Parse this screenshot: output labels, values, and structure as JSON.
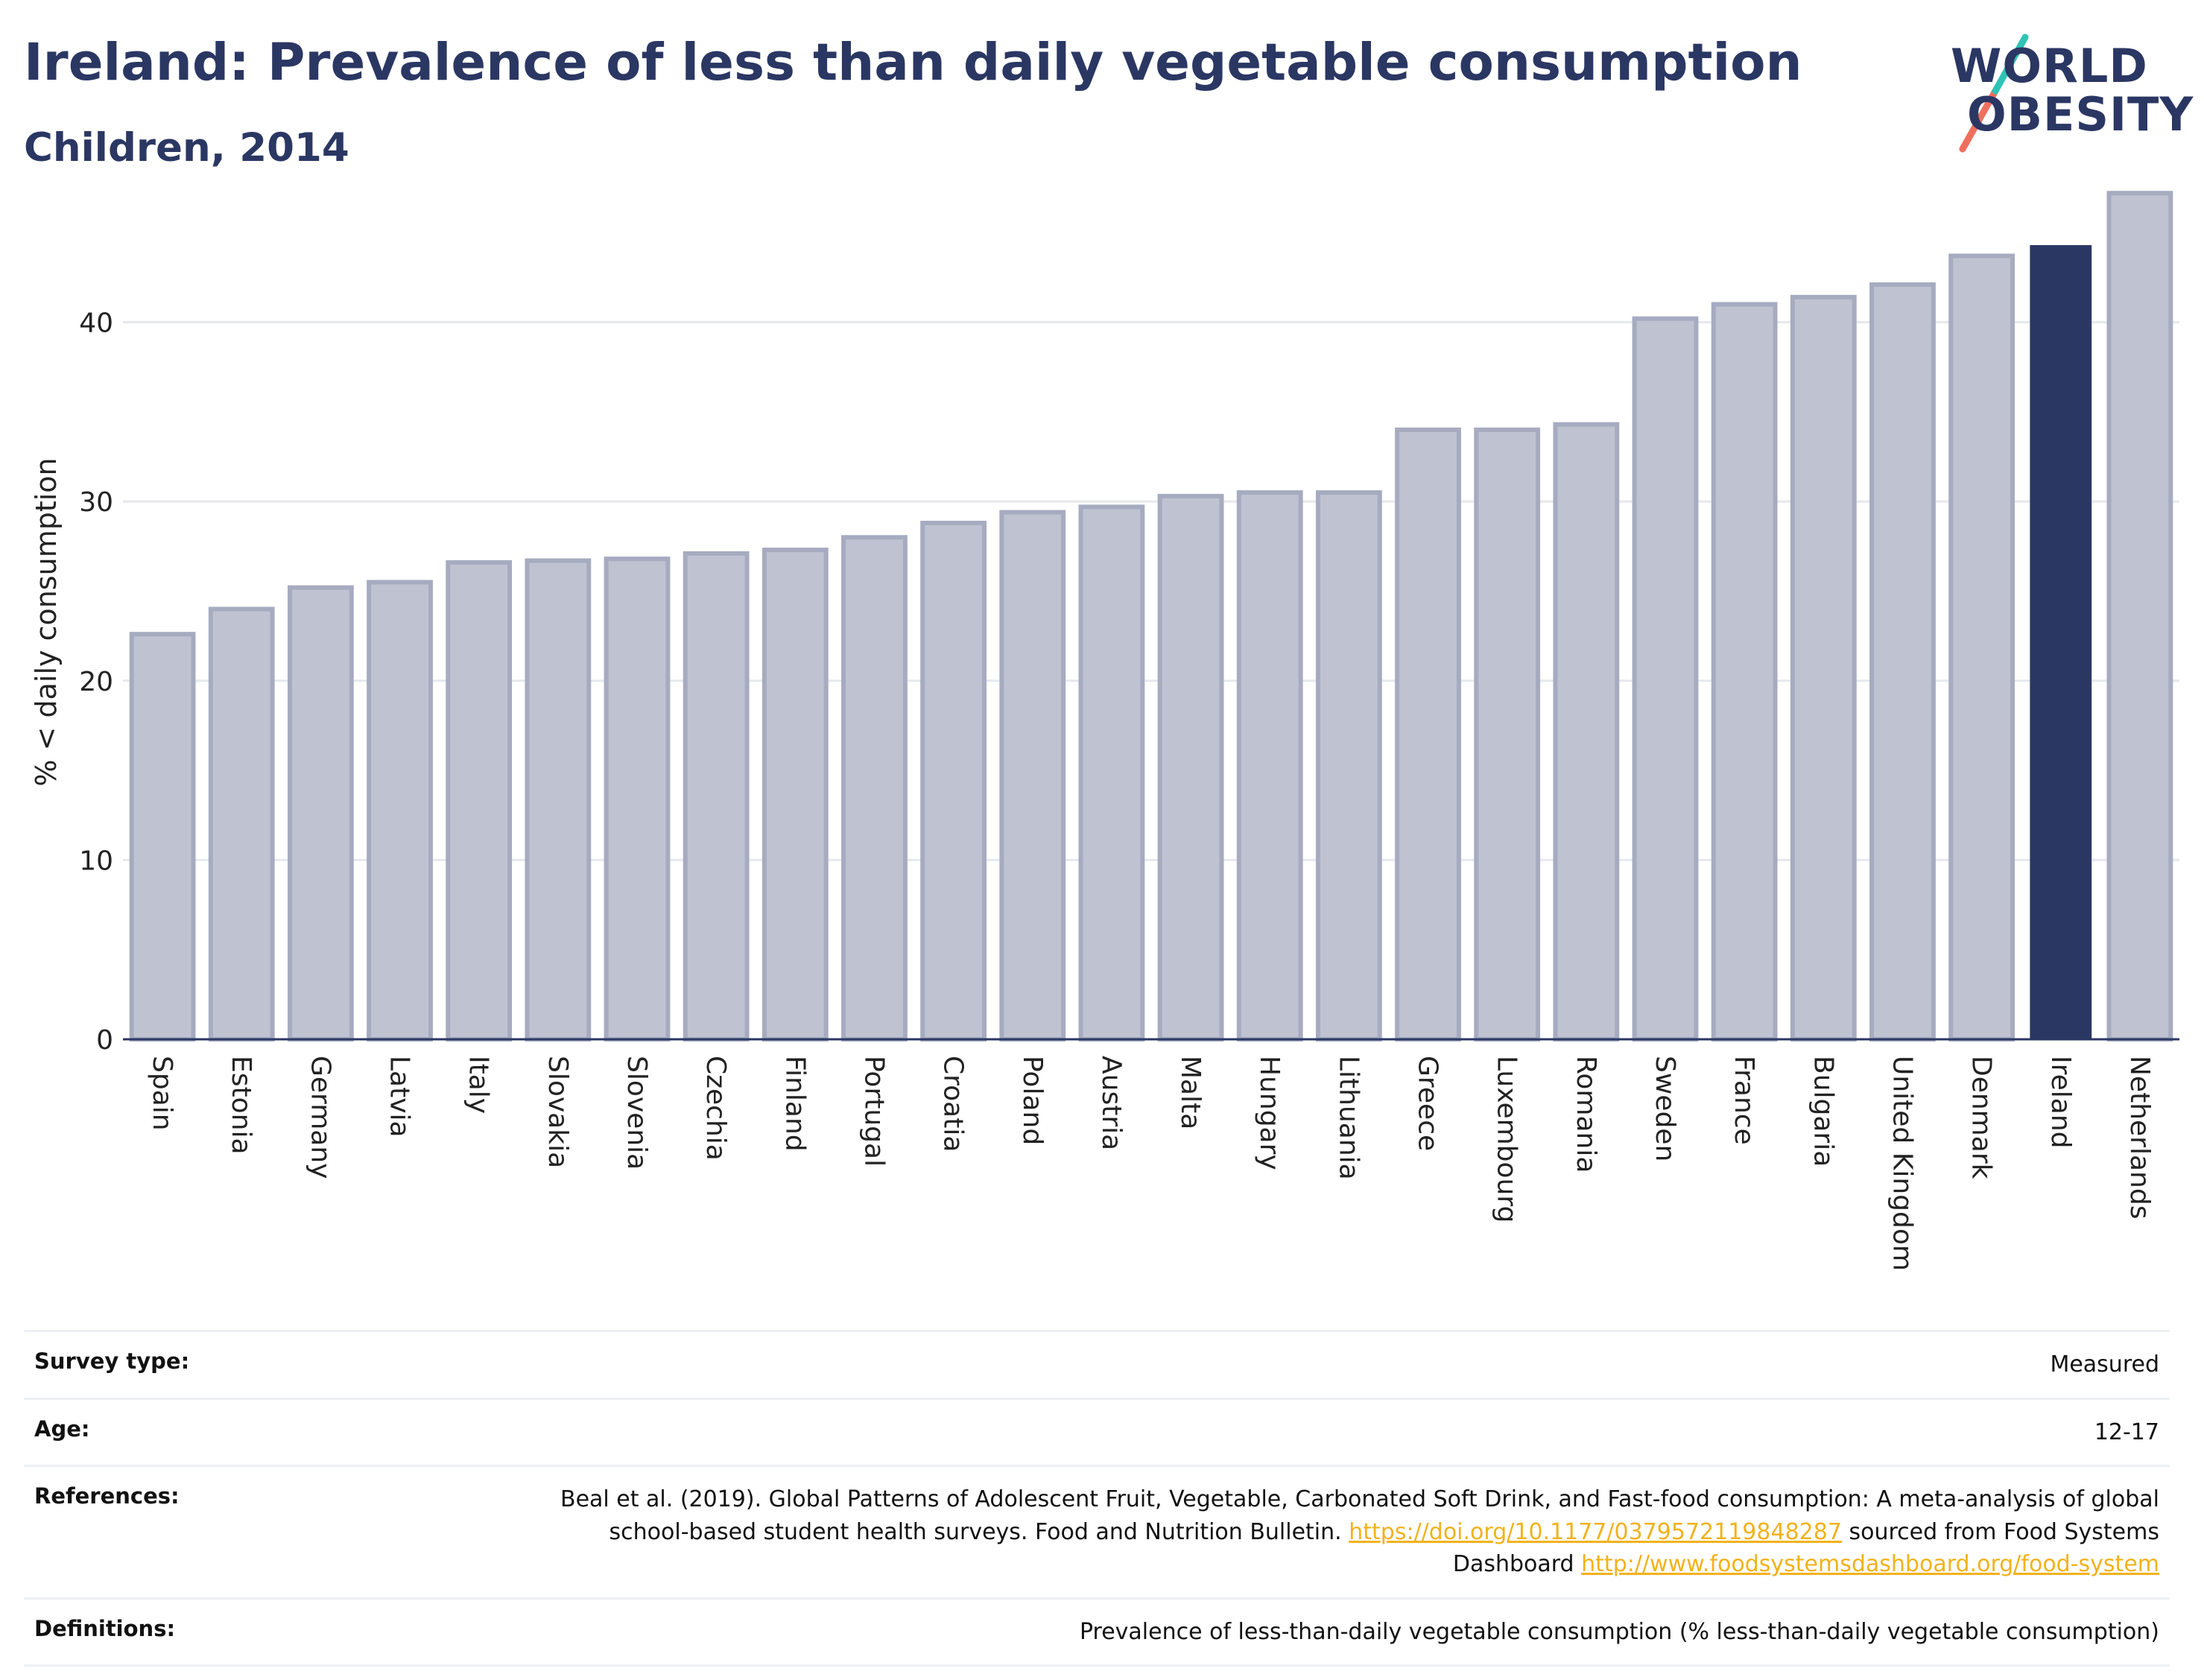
{
  "header": {
    "title": "Ireland: Prevalence of less than daily vegetable consumption",
    "subtitle": "Children, 2014"
  },
  "logo": {
    "line1": "WORLD",
    "line2": "OBESITY",
    "accent_colors": [
      "#2ec4b6",
      "#ef6f5e"
    ]
  },
  "chart_data": {
    "type": "bar",
    "title": "",
    "ylabel": "% < daily consumption",
    "xlabel": "",
    "ylim": [
      0,
      48
    ],
    "yticks": [
      0,
      10,
      20,
      30,
      40
    ],
    "grid": true,
    "highlight": "Ireland",
    "colors": {
      "bar": "#bfc3d1",
      "bar_border": "#a6abc0",
      "highlight": "#2b3763",
      "grid": "#e6e8ee"
    },
    "categories": [
      "Spain",
      "Estonia",
      "Germany",
      "Latvia",
      "Italy",
      "Slovakia",
      "Slovenia",
      "Czechia",
      "Finland",
      "Portugal",
      "Croatia",
      "Poland",
      "Austria",
      "Malta",
      "Hungary",
      "Lithuania",
      "Greece",
      "Luxembourg",
      "Romania",
      "Sweden",
      "France",
      "Bulgaria",
      "United Kingdom",
      "Denmark",
      "Ireland",
      "Netherlands"
    ],
    "values": [
      22.6,
      24.0,
      25.2,
      25.5,
      26.6,
      26.7,
      26.8,
      27.1,
      27.3,
      28.0,
      28.8,
      29.4,
      29.7,
      30.3,
      30.5,
      30.5,
      34.0,
      34.0,
      34.3,
      40.2,
      41.0,
      41.4,
      42.1,
      43.7,
      44.3,
      47.2
    ]
  },
  "meta": {
    "survey_type_label": "Survey type:",
    "survey_type_value": "Measured",
    "age_label": "Age:",
    "age_value": "12-17",
    "references_label": "References:",
    "references_text_1": "Beal et al. (2019). Global Patterns of Adolescent Fruit, Vegetable, Carbonated Soft Drink, and Fast-food consumption: A meta-analysis of global school-based student health surveys. Food and Nutrition Bulletin.",
    "references_link_1": "https://doi.org/10.1177/0379572119848287",
    "references_text_2": "sourced from Food Systems Dashboard",
    "references_link_2": "http://www.foodsystemsdashboard.org/food-system",
    "definitions_label": "Definitions:",
    "definitions_value": "Prevalence of less-than-daily vegetable consumption (% less-than-daily vegetable consumption)"
  }
}
